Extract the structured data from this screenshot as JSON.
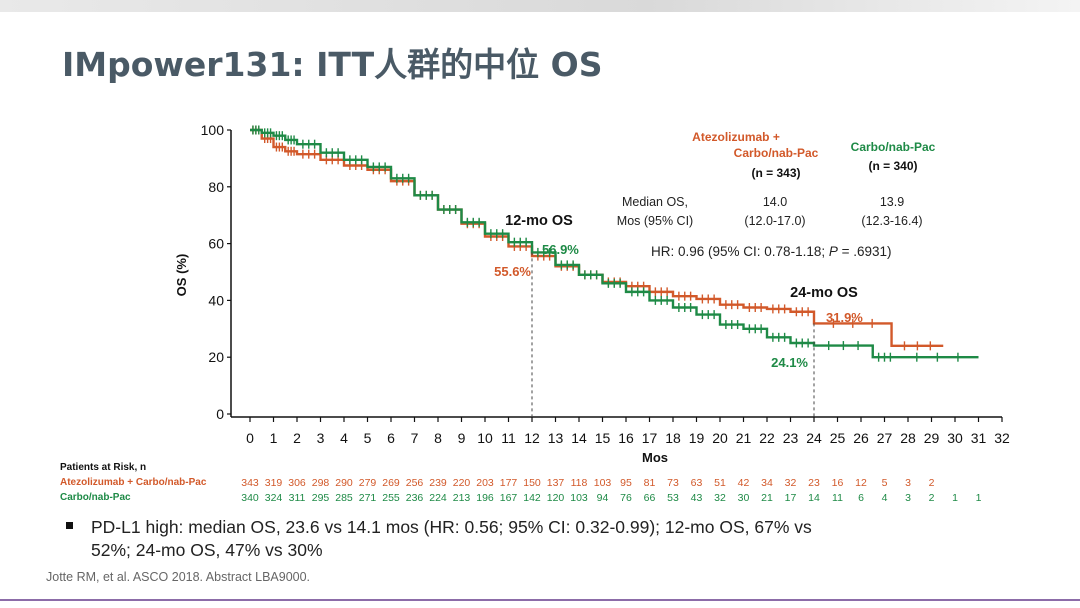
{
  "page_title": "IMpower131: ITT人群的中位 OS",
  "chart_data": {
    "type": "line",
    "subtype": "kaplan-meier",
    "xlabel": "Mos",
    "ylabel": "OS (%)",
    "xlim": [
      0,
      32
    ],
    "ylim": [
      0,
      100
    ],
    "xticks": [
      0,
      1,
      2,
      3,
      4,
      5,
      6,
      7,
      8,
      9,
      10,
      11,
      12,
      13,
      14,
      15,
      16,
      17,
      18,
      19,
      20,
      21,
      22,
      23,
      24,
      25,
      26,
      27,
      28,
      29,
      30,
      31,
      32
    ],
    "yticks": [
      0,
      20,
      40,
      60,
      80,
      100
    ],
    "series": [
      {
        "name": "Atezolizumab + Carbo/nab-Pac",
        "color": "#d2592a",
        "x": [
          0,
          0.5,
          1,
          1.5,
          2,
          3,
          4,
          5,
          6,
          7,
          8,
          9,
          10,
          11,
          12,
          13,
          14,
          15,
          16,
          17,
          18,
          19,
          20,
          21,
          22,
          23,
          24,
          27.3,
          29.5
        ],
        "y": [
          100,
          97,
          94,
          92.5,
          91.5,
          89.5,
          87.5,
          86,
          82,
          77,
          72,
          67,
          62.5,
          59,
          55.6,
          52,
          49,
          46.5,
          45,
          43,
          41.5,
          40.5,
          38.5,
          37.5,
          37,
          36,
          31.9,
          24,
          24
        ]
      },
      {
        "name": "Carbo/nab-Pac",
        "color": "#1e8a46",
        "x": [
          0,
          0.5,
          1,
          1.5,
          2,
          3,
          4,
          5,
          6,
          7,
          8,
          9,
          10,
          11,
          12,
          13,
          14,
          15,
          16,
          17,
          18,
          19,
          20,
          21,
          22,
          23,
          24,
          26.5,
          27.5,
          31
        ],
        "y": [
          100,
          99,
          98,
          96.5,
          95,
          92,
          89.5,
          87,
          83,
          77,
          72,
          67.5,
          63.5,
          60.5,
          56.9,
          52.5,
          49,
          46,
          43,
          40,
          37.5,
          35,
          31.5,
          30,
          27,
          25,
          24.1,
          20,
          20,
          20
        ]
      }
    ],
    "legend": {
      "atezo_line1": "Atezolizumab +",
      "atezo_line2": "Carbo/nab-Pac",
      "atezo_n": "(n = 343)",
      "carbo_name": "Carbo/nab-Pac",
      "carbo_n": "(n = 340)"
    },
    "stats": {
      "median_label_line1": "Median OS,",
      "median_label_line2": "Mos (95% CI)",
      "atezo_median": "14.0",
      "atezo_ci": "(12.0-17.0)",
      "carbo_median": "13.9",
      "carbo_ci": "(12.3-16.4)",
      "hr_prefix": "HR: 0.96 (95% CI: 0.78-1.18; ",
      "hr_p": "P",
      "hr_suffix": " = .6931)"
    },
    "annotations": {
      "os12_label": "12-mo OS",
      "os12_atezo": "55.6%",
      "os12_carbo": "56.9%",
      "os24_label": "24-mo OS",
      "os24_atezo": "31.9%",
      "os24_carbo": "24.1%"
    }
  },
  "risk_table": {
    "title": "Patients at Risk, n",
    "rows": [
      {
        "label": "Atezolizumab + Carbo/nab-Pac",
        "color": "#d2592a",
        "values": [
          "343",
          "319",
          "306",
          "298",
          "290",
          "279",
          "269",
          "256",
          "239",
          "220",
          "203",
          "177",
          "150",
          "137",
          "118",
          "103",
          "95",
          "81",
          "73",
          "63",
          "51",
          "42",
          "34",
          "32",
          "23",
          "16",
          "12",
          "5",
          "3",
          "2"
        ]
      },
      {
        "label": "Carbo/nab-Pac",
        "color": "#1e8a46",
        "values": [
          "340",
          "324",
          "311",
          "295",
          "285",
          "271",
          "255",
          "236",
          "224",
          "213",
          "196",
          "167",
          "142",
          "120",
          "103",
          "94",
          "76",
          "66",
          "53",
          "43",
          "32",
          "30",
          "21",
          "17",
          "14",
          "11",
          "6",
          "4",
          "3",
          "2",
          "1",
          "1"
        ]
      }
    ]
  },
  "bullet": {
    "text": "PD-L1 high: median OS, 23.6 vs 14.1 mos (HR: 0.56; 95% CI: 0.32-0.99); 12-mo OS, 67% vs 52%; 24-mo OS, 47% vs 30%"
  },
  "citation": "Jotte RM, et al. ASCO 2018. Abstract LBA9000."
}
